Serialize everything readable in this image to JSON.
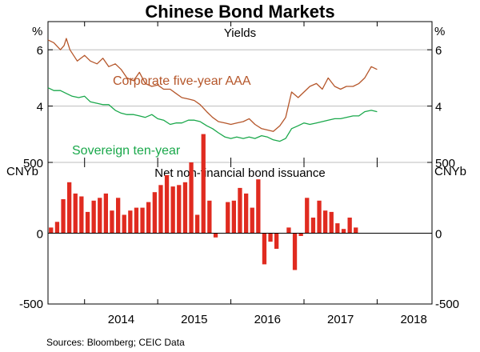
{
  "title": "Chinese Bond Markets",
  "source_note": "Sources:   Bloomberg; CEIC Data",
  "x_axis": {
    "tick_labels": [
      "2014",
      "2015",
      "2016",
      "2017",
      "2018"
    ]
  },
  "colors": {
    "corporate": "#b5562a",
    "sovereign": "#1aa84b",
    "bars": "#e02b20",
    "grid": "#bdbdbd",
    "axis": "#000000"
  },
  "chart_data": [
    {
      "type": "line",
      "panel": "top",
      "subtitle": "Yields",
      "y_unit_left": "%",
      "y_unit_right": "%",
      "ylim": [
        2,
        7
      ],
      "yticks": [
        4,
        6
      ],
      "ytick_labels": [
        "4",
        "6"
      ],
      "xlim": [
        2013.5,
        2018.75
      ],
      "series": [
        {
          "name": "Corporate five-year AAA",
          "label": "Corporate five-year AAA",
          "x": [
            2013.5,
            2013.58,
            2013.67,
            2013.72,
            2013.75,
            2013.8,
            2013.9,
            2014.0,
            2014.08,
            2014.17,
            2014.25,
            2014.33,
            2014.42,
            2014.5,
            2014.58,
            2014.67,
            2014.75,
            2014.83,
            2014.92,
            2015.0,
            2015.08,
            2015.17,
            2015.25,
            2015.33,
            2015.42,
            2015.5,
            2015.58,
            2015.67,
            2015.75,
            2015.83,
            2015.92,
            2016.0,
            2016.08,
            2016.17,
            2016.25,
            2016.33,
            2016.42,
            2016.5,
            2016.58,
            2016.67,
            2016.75,
            2016.83,
            2016.92,
            2017.0,
            2017.08,
            2017.17,
            2017.25,
            2017.33,
            2017.42,
            2017.5,
            2017.58,
            2017.67,
            2017.75,
            2017.83,
            2017.92,
            2018.0
          ],
          "values": [
            6.35,
            6.25,
            6.0,
            6.15,
            6.4,
            6.0,
            5.6,
            5.8,
            5.6,
            5.5,
            5.7,
            5.4,
            5.5,
            5.3,
            5.0,
            4.9,
            5.2,
            4.8,
            4.7,
            4.75,
            4.6,
            4.6,
            4.45,
            4.3,
            4.25,
            4.2,
            4.05,
            3.8,
            3.6,
            3.45,
            3.4,
            3.35,
            3.4,
            3.45,
            3.55,
            3.35,
            3.2,
            3.15,
            3.1,
            3.3,
            3.6,
            4.5,
            4.3,
            4.5,
            4.7,
            4.8,
            4.6,
            5.0,
            4.7,
            4.6,
            4.7,
            4.7,
            4.8,
            5.0,
            5.4,
            5.3
          ]
        },
        {
          "name": "Sovereign ten-year",
          "label": "Sovereign ten-year",
          "x": [
            2013.5,
            2013.58,
            2013.67,
            2013.75,
            2013.83,
            2013.92,
            2014.0,
            2014.08,
            2014.17,
            2014.25,
            2014.33,
            2014.42,
            2014.5,
            2014.58,
            2014.67,
            2014.75,
            2014.83,
            2014.92,
            2015.0,
            2015.08,
            2015.17,
            2015.25,
            2015.33,
            2015.42,
            2015.5,
            2015.58,
            2015.67,
            2015.75,
            2015.83,
            2015.92,
            2016.0,
            2016.08,
            2016.17,
            2016.25,
            2016.33,
            2016.42,
            2016.5,
            2016.58,
            2016.67,
            2016.75,
            2016.83,
            2016.92,
            2017.0,
            2017.08,
            2017.17,
            2017.25,
            2017.33,
            2017.42,
            2017.5,
            2017.58,
            2017.67,
            2017.75,
            2017.83,
            2017.92,
            2018.0
          ],
          "values": [
            4.65,
            4.55,
            4.55,
            4.45,
            4.35,
            4.3,
            4.35,
            4.15,
            4.1,
            4.05,
            4.05,
            3.85,
            3.75,
            3.7,
            3.7,
            3.65,
            3.6,
            3.7,
            3.55,
            3.5,
            3.35,
            3.4,
            3.4,
            3.5,
            3.5,
            3.45,
            3.3,
            3.2,
            3.05,
            2.9,
            2.85,
            2.9,
            2.85,
            2.9,
            2.85,
            2.95,
            2.9,
            2.8,
            2.75,
            2.85,
            3.2,
            3.3,
            3.4,
            3.35,
            3.4,
            3.45,
            3.5,
            3.55,
            3.55,
            3.6,
            3.65,
            3.65,
            3.8,
            3.85,
            3.8
          ]
        }
      ]
    },
    {
      "type": "bar",
      "panel": "bottom",
      "subtitle": "Net non-financial bond issuance",
      "y_unit_left": "CNYb",
      "y_unit_right": "CNYb",
      "ylim": [
        -500,
        500
      ],
      "yticks": [
        -500,
        0,
        500
      ],
      "ytick_labels": [
        "-500",
        "0",
        "500"
      ],
      "xlim": [
        2013.5,
        2018.75
      ],
      "series": [
        {
          "name": "Net non-financial bond issuance",
          "period_start": "2013-07",
          "period": "monthly",
          "values": [
            40,
            80,
            240,
            360,
            280,
            260,
            150,
            230,
            250,
            280,
            160,
            250,
            130,
            160,
            180,
            180,
            220,
            290,
            340,
            410,
            330,
            340,
            360,
            500,
            130,
            700,
            230,
            -30,
            0,
            220,
            230,
            320,
            280,
            180,
            380,
            -220,
            -60,
            -110,
            0,
            40,
            -260,
            -20,
            250,
            110,
            230,
            160,
            150,
            70,
            30,
            110,
            40
          ]
        }
      ]
    }
  ]
}
